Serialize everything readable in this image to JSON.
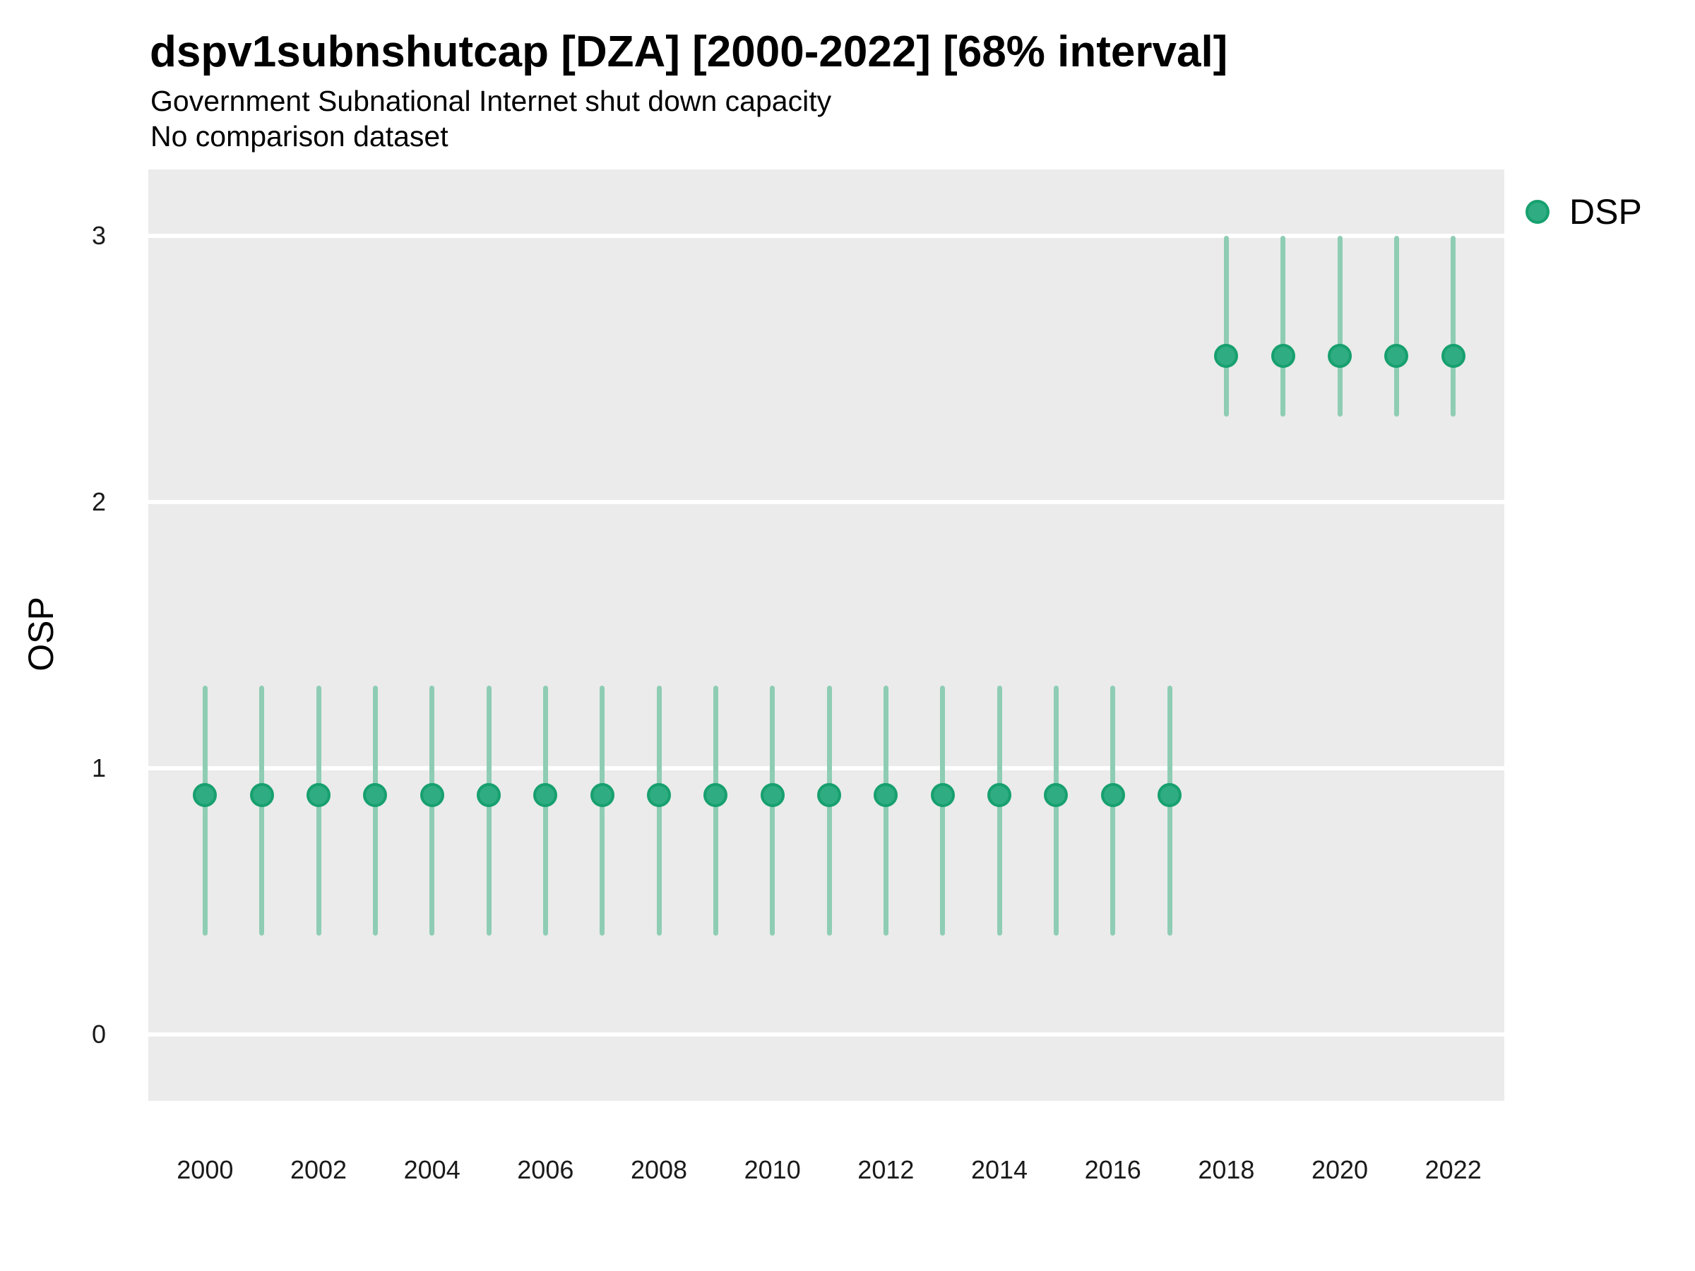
{
  "header": {
    "title": "dspv1subnshutcap [DZA] [2000-2022] [68% interval]",
    "subtitle": "Government Subnational Internet shut down capacity",
    "comparison_note": "No comparison dataset"
  },
  "legend": {
    "position": "right-top",
    "items": [
      {
        "label": "DSP",
        "marker": "circle"
      }
    ]
  },
  "colors": {
    "point_fill": "#2fac81",
    "point_border": "#17a06f",
    "interval_bar": "#8ecdb4",
    "panel_bg": "#ebebeb",
    "gridline": "#ffffff",
    "title_text": "#000000",
    "tick_text": "#1a1a1a"
  },
  "chart_data": {
    "type": "pointrange-scatter",
    "title": "dspv1subnshutcap [DZA] [2000-2022] [68% interval]",
    "subtitle": "Government Subnational Internet shut down capacity",
    "note": "No comparison dataset",
    "interval": "68%",
    "xlabel": "",
    "ylabel": "OSP",
    "grid": "horizontal-white-on-gray",
    "legend_position": "right",
    "x_ticks": [
      2000,
      2002,
      2004,
      2006,
      2008,
      2010,
      2012,
      2014,
      2016,
      2018,
      2020,
      2022
    ],
    "y_ticks": [
      0,
      1,
      2,
      3
    ],
    "x_domain": [
      1999.0,
      2022.9
    ],
    "y_domain": [
      -0.25,
      3.25
    ],
    "years": [
      2000,
      2001,
      2002,
      2003,
      2004,
      2005,
      2006,
      2007,
      2008,
      2009,
      2010,
      2011,
      2012,
      2013,
      2014,
      2015,
      2016,
      2017,
      2018,
      2019,
      2020,
      2021,
      2022
    ],
    "series": [
      {
        "name": "DSP",
        "values": [
          0.9,
          0.9,
          0.9,
          0.9,
          0.9,
          0.9,
          0.9,
          0.9,
          0.9,
          0.9,
          0.9,
          0.9,
          0.9,
          0.9,
          0.9,
          0.9,
          0.9,
          0.9,
          2.55,
          2.55,
          2.55,
          2.55,
          2.55
        ],
        "low": [
          0.37,
          0.37,
          0.37,
          0.37,
          0.37,
          0.37,
          0.37,
          0.37,
          0.37,
          0.37,
          0.37,
          0.37,
          0.37,
          0.37,
          0.37,
          0.37,
          0.37,
          0.37,
          2.32,
          2.32,
          2.32,
          2.32,
          2.32
        ],
        "high": [
          1.31,
          1.31,
          1.31,
          1.31,
          1.31,
          1.31,
          1.31,
          1.31,
          1.31,
          1.31,
          1.31,
          1.31,
          1.31,
          1.31,
          1.31,
          1.31,
          1.31,
          1.31,
          3.0,
          3.0,
          3.0,
          3.0,
          3.0
        ]
      }
    ]
  }
}
